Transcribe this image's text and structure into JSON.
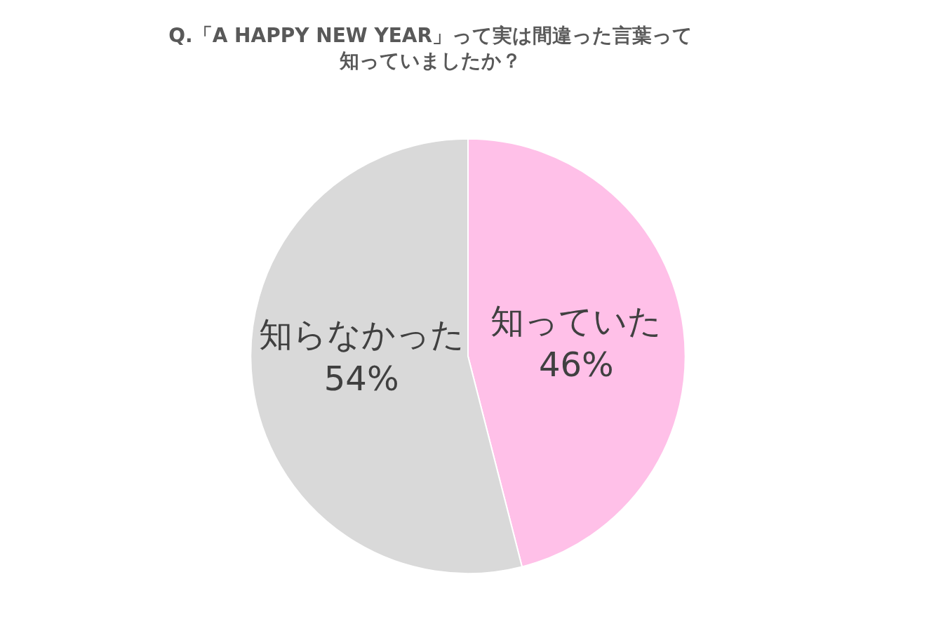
{
  "chart_data": {
    "type": "pie",
    "title": "Q.「A HAPPY NEW YEAR」って実は間違った言葉って知っていましたか？",
    "categories": [
      "知っていた",
      "知らなかった"
    ],
    "values": [
      46,
      54
    ],
    "value_labels": [
      "46%",
      "54%"
    ],
    "colors": [
      "#ffc0e8",
      "#d9d9d9"
    ],
    "legend": false
  }
}
